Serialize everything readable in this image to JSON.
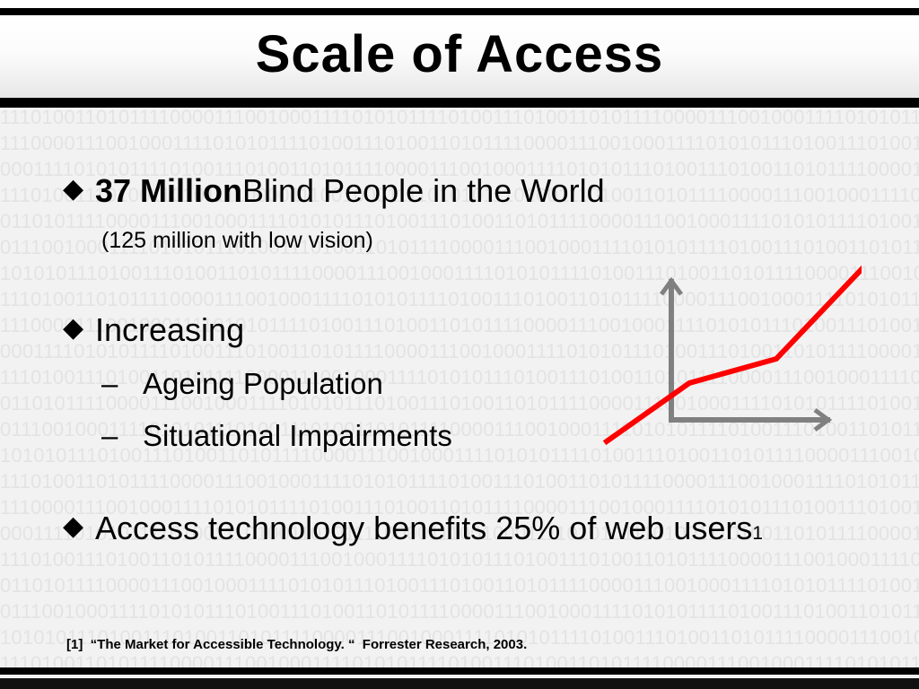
{
  "slide": {
    "title": "Scale of Access",
    "bullets": [
      {
        "bold": "37 Million",
        "text": " Blind People in the World",
        "subline": "(125 million with low vision)"
      },
      {
        "text": "Increasing",
        "subitems": [
          {
            "dash": "–",
            "text": "Ageing Population"
          },
          {
            "dash": "–",
            "text": "Situational Impairments"
          }
        ]
      },
      {
        "text": "Access technology benefits 25% of web users",
        "superscript": "1"
      }
    ],
    "footnote": "[1]  “The Market for Accessible Technology. “  Forrester Research, 2003."
  },
  "colors": {
    "background": "#f2f2f2",
    "binary_text": "#e3e3e3",
    "band_line": "#000000",
    "trend_line": "#ff0000",
    "axis": "#808080"
  },
  "icons": {
    "bullet": "diamond",
    "chart_axes": "arrow-axes-icon",
    "trend": "upward-trend-line"
  }
}
